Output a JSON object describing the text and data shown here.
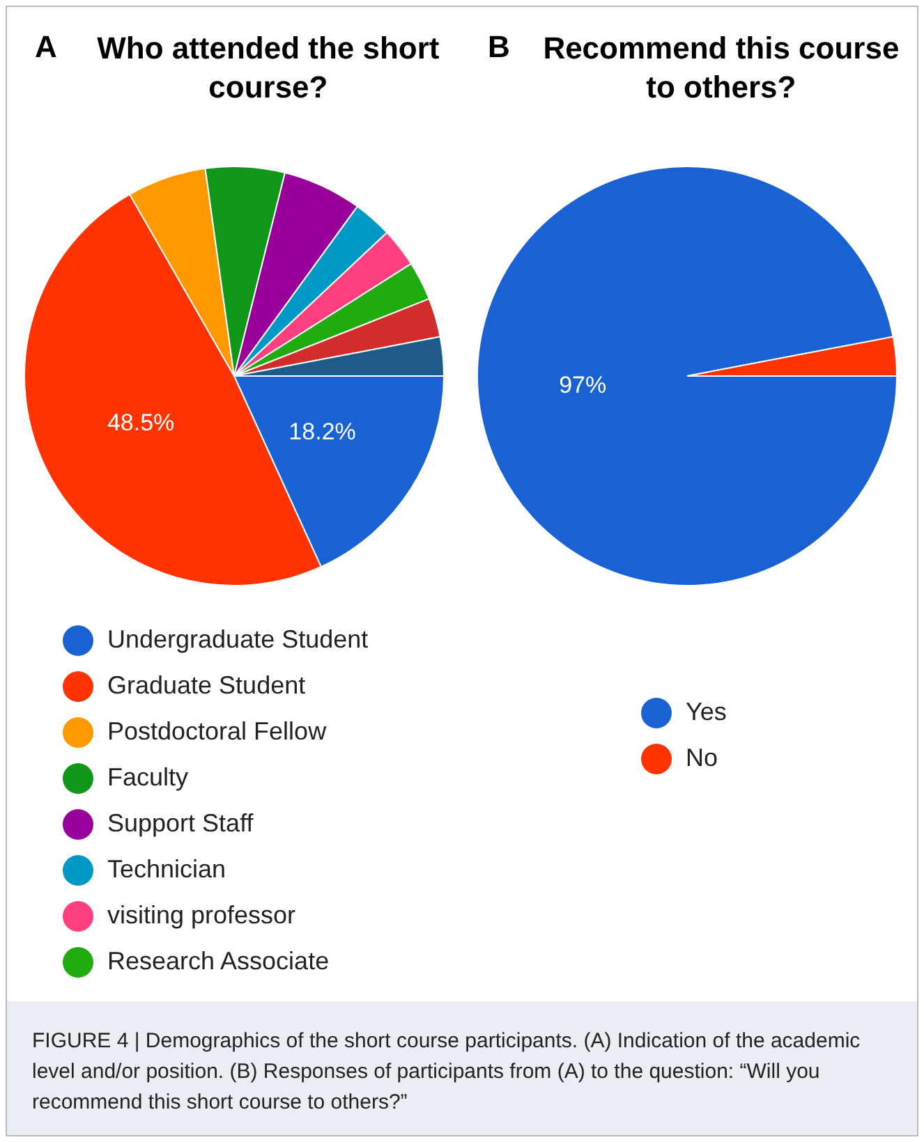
{
  "chart_data": [
    {
      "type": "pie",
      "title": "Who attended the short course?",
      "categories": [
        "Undergraduate Student",
        "Graduate Student",
        "Postdoctoral Fellow",
        "Faculty",
        "Support Staff",
        "Technician",
        "visiting professor",
        "Research Associate",
        null,
        null
      ],
      "values": [
        18.2,
        48.5,
        6.1,
        6.1,
        6.1,
        3.0,
        3.0,
        3.0,
        3.0,
        3.0
      ],
      "colors": [
        "#1a62d3",
        "#ff3300",
        "#ff9900",
        "#109618",
        "#990099",
        "#0099c6",
        "#ff3f7f",
        "#22aa11",
        "#d42b2b",
        "#1f5b8a"
      ],
      "value_labels": [
        "18.2%",
        "48.5%",
        null,
        null,
        null,
        null,
        null,
        null,
        null,
        null
      ],
      "legend": "bottom",
      "annotations": [
        "A",
        "FIGURE 4 | Demographics of the short course participants. (A) Indication of the academic level and/or position. (B) Responses of participants from (A) to the question: “Will you recommend this short course to others?”"
      ]
    },
    {
      "type": "pie",
      "title": "Recommend this course to others?",
      "categories": [
        "Yes",
        "No"
      ],
      "values": [
        97,
        3
      ],
      "colors": [
        "#1a62d3",
        "#ff3300"
      ],
      "value_labels": [
        "97%",
        null
      ],
      "legend": "bottom",
      "annotations": [
        "B"
      ]
    }
  ]
}
